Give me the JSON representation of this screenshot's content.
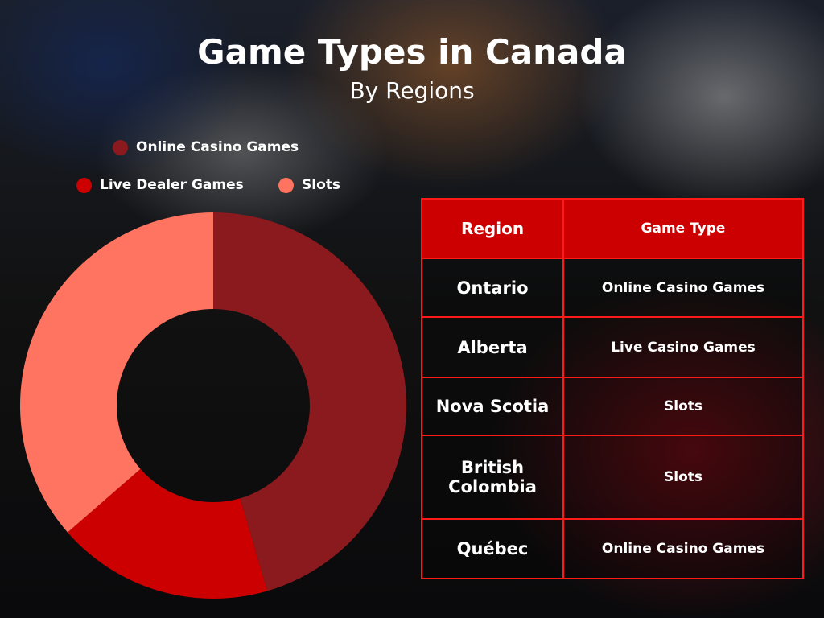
{
  "title": "Game Types in Canada",
  "subtitle": "By Regions",
  "chart_data": {
    "type": "pie",
    "donut": true,
    "title": "Game Types in Canada",
    "subtitle": "By Regions",
    "legend_position": "top",
    "series": [
      {
        "name": "Online Casino Games",
        "value": 45.5,
        "color": "#8b1a1e"
      },
      {
        "name": "Live Dealer Games",
        "value": 18.1,
        "color": "#cc0000"
      },
      {
        "name": "Slots",
        "value": 36.4,
        "color": "#ff7461"
      }
    ]
  },
  "table": {
    "headers": [
      "Region",
      "Game Type"
    ],
    "rows": [
      {
        "region": "Ontario",
        "game": "Online Casino Games"
      },
      {
        "region": "Alberta",
        "game": "Live Casino Games"
      },
      {
        "region": "Nova Scotia",
        "game": "Slots"
      },
      {
        "region": "British Colombia",
        "game": "Slots"
      },
      {
        "region": "Québec",
        "game": "Online Casino Games"
      }
    ]
  }
}
